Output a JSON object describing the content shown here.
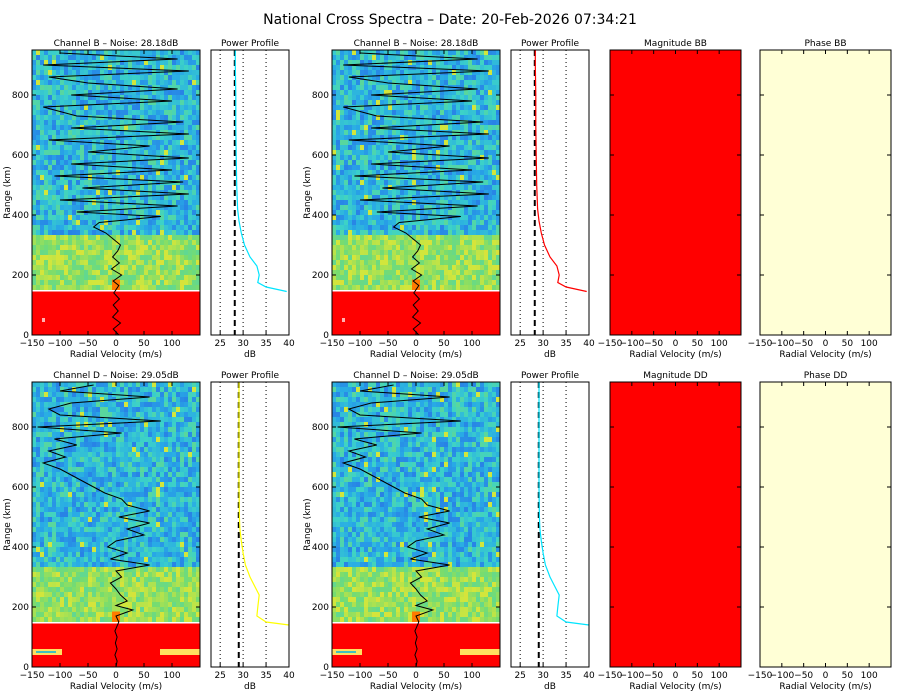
{
  "page": {
    "title": "National Cross Spectra – Date: 20-Feb-2026 07:34:21"
  },
  "axes": {
    "x_label": "Radial Velocity (m/s)",
    "y_label": "Range (km)",
    "db_label": "dB",
    "vel_ticks": [
      "−150",
      "−100",
      "−50",
      "0",
      "50",
      "100"
    ],
    "range_ticks": [
      "0",
      "200",
      "400",
      "600",
      "800"
    ],
    "db_ticks": [
      "25",
      "30",
      "35",
      "40"
    ]
  },
  "panels": [
    {
      "id": "chB_left",
      "title": "Channel B – Noise: 28.18dB",
      "kind": "spectra",
      "noise": 28.18,
      "xlabel_shown": true,
      "ylabel_shown": true
    },
    {
      "id": "ppB_left",
      "title": "Power Profile",
      "kind": "profile",
      "curve_color": "#00e5ff",
      "noise": 28.18
    },
    {
      "id": "chB_right",
      "title": "Channel B – Noise: 28.18dB",
      "kind": "spectra",
      "noise": 28.18,
      "xlabel_shown": true,
      "ylabel_shown": true
    },
    {
      "id": "ppB_right",
      "title": "Power Profile",
      "kind": "profile",
      "curve_color": "#ff0000",
      "noise": 28.18
    },
    {
      "id": "magBB",
      "title": "Magnitude BB",
      "kind": "fill",
      "fill_color": "#ff0000"
    },
    {
      "id": "phaseBB",
      "title": "Phase BB",
      "kind": "fill",
      "fill_color": "#ffffd6"
    },
    {
      "id": "chD_left",
      "title": "Channel D – Noise: 29.05dB",
      "kind": "spectra",
      "noise": 29.05,
      "xlabel_shown": true,
      "ylabel_shown": true
    },
    {
      "id": "ppD_left",
      "title": "Power Profile",
      "kind": "profile",
      "curve_color": "#ffff00",
      "noise": 29.05
    },
    {
      "id": "chD_right",
      "title": "Channel D – Noise: 29.05dB",
      "kind": "spectra",
      "noise": 29.05,
      "xlabel_shown": true,
      "ylabel_shown": true
    },
    {
      "id": "ppD_right",
      "title": "Power Profile",
      "kind": "profile",
      "curve_color": "#00e5ff",
      "noise": 29.05
    },
    {
      "id": "magDD",
      "title": "Magnitude DD",
      "kind": "fill",
      "fill_color": "#ff0000"
    },
    {
      "id": "phaseDD",
      "title": "Phase DD",
      "kind": "fill",
      "fill_color": "#ffffd6"
    }
  ],
  "chart_data": {
    "type": "heatmap",
    "title": "National Cross Spectra – Date: 20-Feb-2026 07:34:21",
    "xlabel": "Radial Velocity (m/s)",
    "ylabel": "Range (km)",
    "xlim": [
      -150,
      150
    ],
    "ylim": [
      0,
      950
    ],
    "profile_xlim": [
      23,
      40
    ],
    "profile_xlabel": "dB",
    "noise_levels_db": {
      "Channel B": 28.18,
      "Channel D": 29.05
    },
    "power_profile_B": {
      "range_km": [
        145,
        160,
        175,
        200,
        230,
        260,
        300,
        340,
        380,
        420,
        500,
        600,
        700,
        800,
        900,
        950
      ],
      "db": [
        39.5,
        35,
        33.2,
        33.5,
        33,
        31.5,
        30.3,
        29.6,
        29.1,
        28.8,
        28.6,
        28.5,
        28.4,
        28.4,
        28.3,
        28.3
      ]
    },
    "power_profile_D": {
      "range_km": [
        140,
        150,
        170,
        200,
        240,
        270,
        300,
        340,
        380,
        420,
        460,
        500,
        600,
        700,
        800,
        900,
        950
      ],
      "db": [
        40,
        35,
        33,
        33.2,
        33.5,
        32.5,
        31.5,
        30.5,
        30,
        29.6,
        29.3,
        29.2,
        29.1,
        29.1,
        29.1,
        29.1,
        29.1
      ]
    },
    "doppler_trace_B": {
      "range_km": [
        0,
        20,
        40,
        60,
        80,
        100,
        120,
        140,
        165,
        180,
        200,
        220,
        240,
        260,
        280,
        300,
        320,
        340,
        360,
        375,
        395,
        410,
        430,
        450,
        470,
        490,
        510,
        530,
        550,
        570,
        590,
        610,
        630,
        650,
        670,
        690,
        710,
        730,
        760,
        780,
        800,
        820,
        840,
        860,
        880,
        900,
        920,
        940
      ],
      "velocity": [
        5,
        -5,
        8,
        -6,
        4,
        -5,
        6,
        -4,
        5,
        -5,
        10,
        -8,
        6,
        -6,
        3,
        8,
        -5,
        -18,
        -40,
        -30,
        80,
        -70,
        110,
        -100,
        130,
        -60,
        120,
        -110,
        100,
        -80,
        130,
        -50,
        60,
        -120,
        130,
        -80,
        120,
        -70,
        -130,
        100,
        -80,
        110,
        -50,
        -120,
        130,
        -130,
        110,
        -100
      ]
    },
    "doppler_trace_D": {
      "range_km": [
        0,
        20,
        40,
        60,
        80,
        100,
        120,
        150,
        170,
        190,
        205,
        220,
        240,
        260,
        280,
        300,
        320,
        340,
        360,
        380,
        400,
        420,
        440,
        460,
        480,
        500,
        520,
        540,
        560,
        580,
        600,
        620,
        640,
        660,
        680,
        700,
        720,
        740,
        760,
        780,
        800,
        820,
        840,
        860,
        880,
        900,
        920,
        940
      ],
      "velocity": [
        0,
        2,
        -2,
        2,
        -1,
        2,
        -2,
        5,
        0,
        30,
        0,
        20,
        8,
        0,
        -10,
        10,
        0,
        60,
        -10,
        20,
        -15,
        0,
        50,
        20,
        60,
        5,
        60,
        20,
        10,
        -20,
        -40,
        -60,
        -80,
        -100,
        -130,
        -90,
        -120,
        -70,
        -110,
        10,
        -140,
        80,
        -100,
        -120,
        -80,
        60,
        -100,
        -40
      ]
    }
  }
}
